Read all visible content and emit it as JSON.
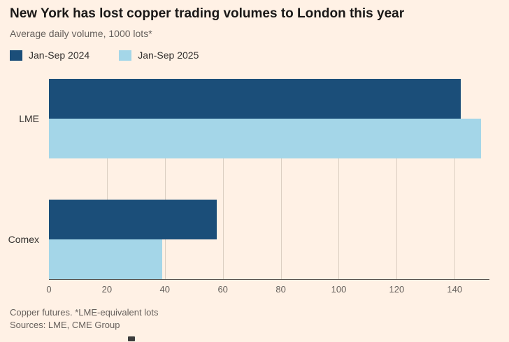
{
  "header": {
    "title": "New York has lost copper trading volumes to London this year",
    "subtitle": "Average daily volume, 1000 lots*"
  },
  "legend": [
    {
      "label": "Jan-Sep 2024",
      "color": "#1B4E79"
    },
    {
      "label": "Jan-Sep 2025",
      "color": "#A4D6E8"
    }
  ],
  "chart_data": {
    "type": "bar",
    "orientation": "horizontal",
    "title": "New York has lost copper trading volumes to London this year",
    "subtitle": "Average daily volume, 1000 lots*",
    "categories": [
      "LME",
      "Comex"
    ],
    "series": [
      {
        "name": "Jan-Sep 2024",
        "color": "#1B4E79",
        "values": [
          142,
          58
        ]
      },
      {
        "name": "Jan-Sep 2025",
        "color": "#A4D6E8",
        "values": [
          149,
          39
        ]
      }
    ],
    "xlabel": "",
    "ylabel": "",
    "xlim": [
      0,
      152
    ],
    "xticks": [
      0,
      20,
      40,
      60,
      80,
      100,
      120,
      140
    ],
    "grid": "vertical",
    "legend_position": "top"
  },
  "footer": {
    "note": "Copper futures. *LME-equivalent lots",
    "sources": "Sources: LME, CME Group"
  },
  "colors": {
    "background": "#FFF1E5",
    "title": "#1A1817",
    "text": "#66605C",
    "grid": "#DCCFC2",
    "axis": "#58534E"
  }
}
